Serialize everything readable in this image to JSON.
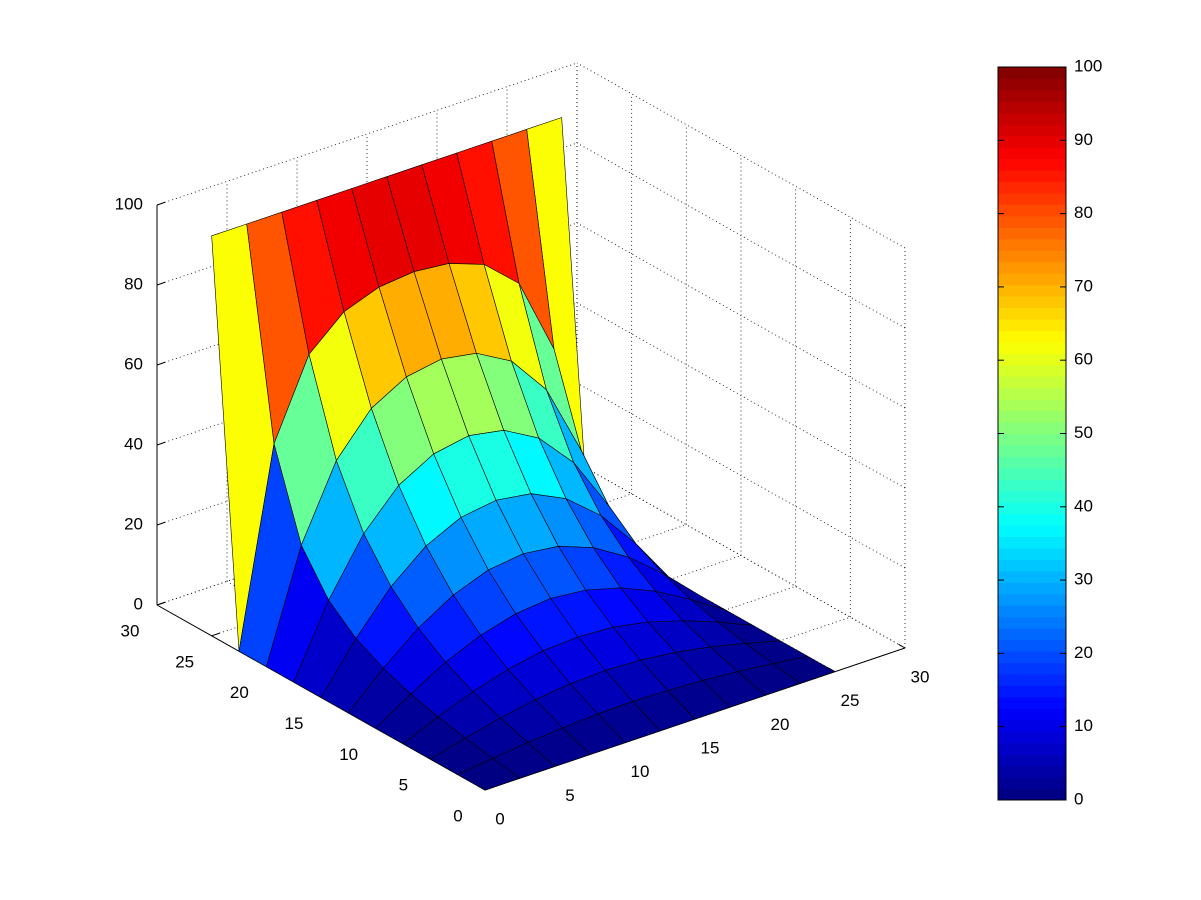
{
  "chart_data": {
    "type": "surface",
    "x": [
      0,
      2.5,
      5,
      7.5,
      10,
      12.5,
      15,
      17.5,
      20,
      22.5,
      25
    ],
    "y": [
      0,
      2.5,
      5,
      7.5,
      10,
      12.5,
      15,
      17.5,
      20,
      22.5,
      25
    ],
    "z": [
      [
        0,
        0,
        0,
        0,
        0,
        0,
        0,
        0,
        0,
        0,
        0
      ],
      [
        0,
        1.1,
        2.1,
        2.8,
        3.3,
        3.5,
        3.3,
        2.8,
        2.1,
        1.1,
        0
      ],
      [
        0,
        2.3,
        4.4,
        6.0,
        7.0,
        7.4,
        7.0,
        6.0,
        4.4,
        2.3,
        0
      ],
      [
        0,
        3.8,
        7.1,
        9.7,
        11.4,
        11.9,
        11.4,
        9.7,
        7.1,
        3.8,
        0
      ],
      [
        0,
        5.6,
        10.6,
        14.4,
        16.8,
        17.7,
        16.8,
        14.4,
        10.6,
        5.6,
        0
      ],
      [
        0,
        8.2,
        15.3,
        20.6,
        23.9,
        25.0,
        23.9,
        20.6,
        15.3,
        8.2,
        0
      ],
      [
        0,
        11.8,
        21.8,
        29.0,
        33.2,
        34.5,
        33.2,
        29.0,
        21.8,
        11.8,
        0
      ],
      [
        0,
        17.5,
        31.2,
        40.3,
        45.2,
        46.8,
        45.2,
        40.3,
        31.2,
        17.5,
        0
      ],
      [
        0,
        27.4,
        45.6,
        55.7,
        60.6,
        62.1,
        60.6,
        55.7,
        45.6,
        27.4,
        0
      ],
      [
        0,
        48.9,
        68.3,
        76.0,
        79.2,
        80.1,
        79.2,
        76.0,
        68.3,
        48.9,
        0
      ],
      [
        100,
        100,
        100,
        100,
        100,
        100,
        100,
        100,
        100,
        100,
        100
      ]
    ],
    "xlim": [
      0,
      30
    ],
    "ylim": [
      0,
      30
    ],
    "zlim": [
      0,
      100
    ],
    "xticks": [
      0,
      5,
      10,
      15,
      20,
      25,
      30
    ],
    "yticks": [
      0,
      5,
      10,
      15,
      20,
      25,
      30
    ],
    "zticks": [
      0,
      20,
      40,
      60,
      80,
      100
    ],
    "grid": true,
    "colormap": "jet",
    "colorbar": {
      "lim": [
        0,
        100
      ],
      "ticks": [
        0,
        10,
        20,
        30,
        40,
        50,
        60,
        70,
        80,
        90,
        100
      ]
    }
  }
}
